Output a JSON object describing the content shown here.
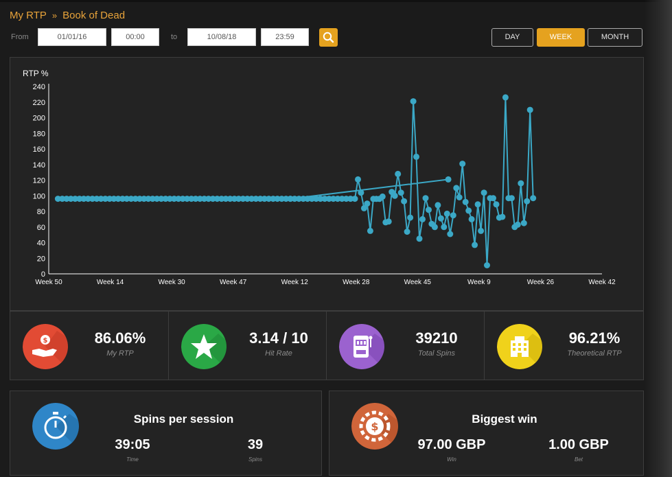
{
  "breadcrumb": {
    "root": "My RTP",
    "separator": "»",
    "current": "Book of Dead"
  },
  "filters": {
    "from_label": "From",
    "from_date": "01/01/16",
    "from_time": "00:00",
    "to_label": "to",
    "to_date": "10/08/18",
    "to_time": "23:59",
    "search_icon": "search-icon"
  },
  "period": {
    "options": [
      "DAY",
      "WEEK",
      "MONTH"
    ],
    "selected": "WEEK"
  },
  "colors": {
    "accent": "#e5a21f",
    "line": "#3ba8c6",
    "rtp_icon": "#e24b34",
    "hitrate_icon": "#2aa846",
    "spins_icon": "#9b62cf",
    "theoretical_icon": "#f0d21b",
    "session_icon": "#2f86c8",
    "win_icon": "#d0653a"
  },
  "chart_data": {
    "type": "line",
    "ylabel": "RTP %",
    "ylim": [
      0,
      240
    ],
    "yticks": [
      0,
      20,
      40,
      60,
      80,
      100,
      120,
      140,
      160,
      180,
      200,
      220,
      240
    ],
    "xlim": [
      0,
      90
    ],
    "xticks": [
      {
        "x": 0,
        "label": "Week 50"
      },
      {
        "x": 10,
        "label": "Week 14"
      },
      {
        "x": 20,
        "label": "Week 30"
      },
      {
        "x": 30,
        "label": "Week 47"
      },
      {
        "x": 40,
        "label": "Week 12"
      },
      {
        "x": 50,
        "label": "Week 28"
      },
      {
        "x": 60,
        "label": "Week 45"
      },
      {
        "x": 70,
        "label": "Week 9"
      },
      {
        "x": 80,
        "label": "Week 26"
      },
      {
        "x": 90,
        "label": "Week 42"
      }
    ],
    "series": [
      {
        "points": [
          [
            1.5,
            96.2
          ],
          [
            2.2,
            96.2
          ],
          [
            2.9,
            96.2
          ],
          [
            3.6,
            96.2
          ],
          [
            4.3,
            96.2
          ],
          [
            5.0,
            96.2
          ],
          [
            5.7,
            96.2
          ],
          [
            6.4,
            96.2
          ],
          [
            7.1,
            96.2
          ],
          [
            7.8,
            96.2
          ],
          [
            8.5,
            96.2
          ],
          [
            9.2,
            96.2
          ],
          [
            9.9,
            96.2
          ],
          [
            10.6,
            96.2
          ],
          [
            11.3,
            96.2
          ],
          [
            12.0,
            96.2
          ],
          [
            12.7,
            96.2
          ],
          [
            13.4,
            96.2
          ],
          [
            14.1,
            96.2
          ],
          [
            14.8,
            96.2
          ],
          [
            15.5,
            96.2
          ],
          [
            16.2,
            96.2
          ],
          [
            16.9,
            96.2
          ],
          [
            17.6,
            96.2
          ],
          [
            18.3,
            96.2
          ],
          [
            19.0,
            96.2
          ],
          [
            19.7,
            96.2
          ],
          [
            20.4,
            96.2
          ],
          [
            21.1,
            96.2
          ],
          [
            21.8,
            96.2
          ],
          [
            22.5,
            96.2
          ],
          [
            23.2,
            96.2
          ],
          [
            23.9,
            96.2
          ],
          [
            24.6,
            96.2
          ],
          [
            25.3,
            96.2
          ],
          [
            26.0,
            96.2
          ],
          [
            26.7,
            96.2
          ],
          [
            27.4,
            96.2
          ],
          [
            28.1,
            96.2
          ],
          [
            28.8,
            96.2
          ],
          [
            29.5,
            96.2
          ],
          [
            30.2,
            96.2
          ],
          [
            30.9,
            96.2
          ],
          [
            31.6,
            96.2
          ],
          [
            32.3,
            96.2
          ],
          [
            33.0,
            96.2
          ],
          [
            33.7,
            96.2
          ],
          [
            34.4,
            96.2
          ],
          [
            35.1,
            96.2
          ],
          [
            35.8,
            96.2
          ],
          [
            36.5,
            96.2
          ],
          [
            37.2,
            96.2
          ],
          [
            37.9,
            96.2
          ],
          [
            38.6,
            96.2
          ],
          [
            39.3,
            96.2
          ],
          [
            65.0,
            121
          ],
          [
            39.3,
            96.2
          ],
          [
            40.0,
            96.2
          ],
          [
            40.7,
            96.2
          ],
          [
            41.4,
            96.2
          ],
          [
            42.1,
            96.2
          ],
          [
            42.8,
            96.2
          ],
          [
            43.5,
            96.2
          ],
          [
            44.2,
            96.2
          ],
          [
            44.9,
            96.2
          ],
          [
            45.6,
            96.2
          ],
          [
            46.3,
            96.2
          ],
          [
            47.0,
            96.2
          ],
          [
            47.7,
            96.2
          ],
          [
            48.4,
            96.2
          ],
          [
            49.1,
            96.2
          ],
          [
            49.8,
            96.2
          ],
          [
            50.3,
            121
          ],
          [
            50.8,
            104
          ],
          [
            51.3,
            84
          ],
          [
            51.8,
            90
          ],
          [
            52.3,
            55
          ],
          [
            52.8,
            96
          ],
          [
            53.3,
            96
          ],
          [
            53.8,
            96
          ],
          [
            54.3,
            99
          ],
          [
            54.8,
            66
          ],
          [
            55.3,
            67
          ],
          [
            55.8,
            105
          ],
          [
            56.3,
            100
          ],
          [
            56.8,
            128
          ],
          [
            57.3,
            104
          ],
          [
            57.8,
            93
          ],
          [
            58.3,
            54
          ],
          [
            58.8,
            72
          ],
          [
            59.3,
            221
          ],
          [
            59.8,
            150
          ],
          [
            60.3,
            45
          ],
          [
            60.8,
            70
          ],
          [
            61.3,
            97
          ],
          [
            61.8,
            82
          ],
          [
            62.3,
            64
          ],
          [
            62.8,
            60
          ],
          [
            63.3,
            88
          ],
          [
            63.8,
            71
          ],
          [
            64.3,
            60
          ],
          [
            64.8,
            77
          ],
          [
            65.3,
            51
          ],
          [
            65.8,
            75
          ],
          [
            66.3,
            110
          ],
          [
            66.8,
            98
          ],
          [
            67.3,
            141
          ],
          [
            67.8,
            92
          ],
          [
            68.3,
            81
          ],
          [
            68.8,
            70
          ],
          [
            69.3,
            37
          ],
          [
            69.8,
            89
          ],
          [
            70.3,
            55
          ],
          [
            70.8,
            104
          ],
          [
            71.3,
            11
          ],
          [
            71.8,
            97
          ],
          [
            72.3,
            97
          ],
          [
            72.8,
            89
          ],
          [
            73.3,
            72
          ],
          [
            73.8,
            73
          ],
          [
            74.3,
            226
          ],
          [
            74.8,
            97
          ],
          [
            75.3,
            97
          ],
          [
            75.8,
            60
          ],
          [
            76.3,
            63
          ],
          [
            76.8,
            116
          ],
          [
            77.3,
            65
          ],
          [
            77.8,
            93
          ],
          [
            78.3,
            210
          ],
          [
            78.8,
            97
          ]
        ]
      }
    ]
  },
  "stats": [
    {
      "value": "86.06%",
      "label": "My RTP",
      "icon": "money-hand-icon"
    },
    {
      "value": "3.14 / 10",
      "label": "Hit Rate",
      "icon": "star-icon"
    },
    {
      "value": "39210",
      "label": "Total Spins",
      "icon": "slot-machine-icon"
    },
    {
      "value": "96.21%",
      "label": "Theoretical RTP",
      "icon": "casino-building-icon"
    }
  ],
  "session": {
    "title": "Spins per session",
    "icon": "stopwatch-icon",
    "time_value": "39:05",
    "time_label": "Time",
    "spins_value": "39",
    "spins_label": "Spins"
  },
  "biggest_win": {
    "title": "Biggest win",
    "icon": "casino-chip-icon",
    "win_value": "97.00 GBP",
    "win_label": "Win",
    "bet_value": "1.00 GBP",
    "bet_label": "Bet"
  }
}
